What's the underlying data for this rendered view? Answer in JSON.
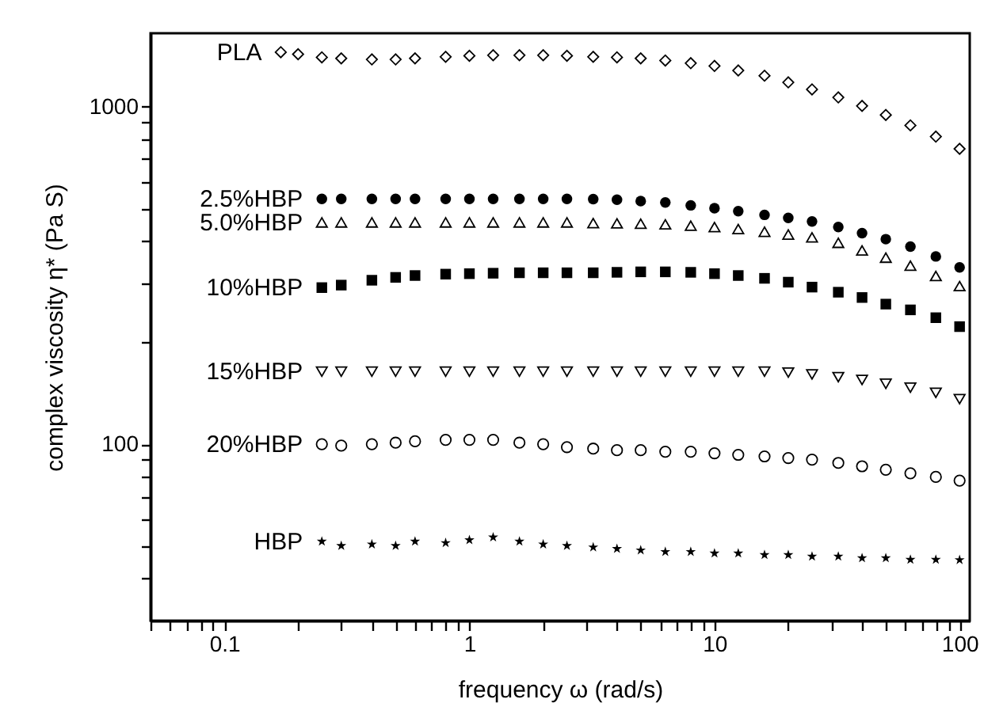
{
  "chart_data": {
    "type": "scatter",
    "xlabel": "frequency ω (rad/s)",
    "ylabel": "complex viscosity η* (Pa S)",
    "xlim": [
      0.05,
      110
    ],
    "ylim": [
      30,
      1650
    ],
    "log": "xy",
    "grid": false,
    "legend": false,
    "xticks": [
      {
        "value": 0.05,
        "label": null
      },
      {
        "value": 0.06,
        "label": null
      },
      {
        "value": 0.07,
        "label": null
      },
      {
        "value": 0.08,
        "label": null
      },
      {
        "value": 0.09,
        "label": null
      },
      0.1,
      {
        "value": 0.2,
        "label": null
      },
      {
        "value": 0.3,
        "label": null
      },
      {
        "value": 0.4,
        "label": null
      },
      {
        "value": 0.5,
        "label": null
      },
      {
        "value": 0.6,
        "label": null
      },
      {
        "value": 0.7,
        "label": null
      },
      {
        "value": 0.8,
        "label": null
      },
      {
        "value": 0.9,
        "label": null
      },
      1,
      {
        "value": 2,
        "label": null
      },
      {
        "value": 3,
        "label": null
      },
      {
        "value": 4,
        "label": null
      },
      {
        "value": 5,
        "label": null
      },
      {
        "value": 6,
        "label": null
      },
      {
        "value": 7,
        "label": null
      },
      {
        "value": 8,
        "label": null
      },
      {
        "value": 9,
        "label": null
      },
      10,
      {
        "value": 20,
        "label": null
      },
      {
        "value": 30,
        "label": null
      },
      {
        "value": 40,
        "label": null
      },
      {
        "value": 50,
        "label": null
      },
      {
        "value": 60,
        "label": null
      },
      {
        "value": 70,
        "label": null
      },
      {
        "value": 80,
        "label": null
      },
      {
        "value": 90,
        "label": null
      },
      100
    ],
    "yticks": [
      {
        "value": 40,
        "label": null
      },
      {
        "value": 50,
        "label": null
      },
      {
        "value": 60,
        "label": null
      },
      {
        "value": 70,
        "label": null
      },
      {
        "value": 80,
        "label": null
      },
      {
        "value": 90,
        "label": null
      },
      100,
      {
        "value": 200,
        "label": null
      },
      {
        "value": 300,
        "label": null
      },
      {
        "value": 400,
        "label": null
      },
      {
        "value": 500,
        "label": null
      },
      {
        "value": 600,
        "label": null
      },
      {
        "value": 700,
        "label": null
      },
      {
        "value": 800,
        "label": null
      },
      {
        "value": 900,
        "label": null
      },
      1000
    ],
    "x": [
      0.25,
      0.3,
      0.4,
      0.5,
      0.6,
      0.8,
      1,
      1.25,
      1.6,
      2,
      2.5,
      3.2,
      4,
      5,
      6.3,
      8,
      10,
      12.5,
      16,
      20,
      25,
      32,
      40,
      50,
      63,
      80,
      100
    ],
    "series": [
      {
        "name": "PLA",
        "color": "#000000",
        "marker": "diamond",
        "x": [
          0.17,
          0.2,
          0.25,
          0.3,
          0.4,
          0.5,
          0.6,
          0.8,
          1,
          1.25,
          1.6,
          2,
          2.5,
          3.2,
          4,
          5,
          6.3,
          8,
          10,
          12.5,
          16,
          20,
          25,
          32,
          40,
          50,
          63,
          80,
          100
        ],
        "values": [
          1450,
          1430,
          1400,
          1390,
          1380,
          1380,
          1390,
          1405,
          1415,
          1420,
          1420,
          1420,
          1415,
          1405,
          1400,
          1390,
          1370,
          1345,
          1320,
          1280,
          1235,
          1180,
          1125,
          1065,
          1005,
          945,
          880,
          815,
          750
        ]
      },
      {
        "name": "2.5%HBP",
        "color": "#000000",
        "marker": "circle-filled",
        "values": [
          533,
          533,
          533,
          533,
          533,
          533,
          533,
          533,
          533,
          533,
          533,
          532,
          530,
          525,
          520,
          510,
          500,
          490,
          478,
          468,
          457,
          440,
          422,
          405,
          385,
          360,
          334
        ]
      },
      {
        "name": "5.0%HBP",
        "color": "#000000",
        "marker": "triangle",
        "values": [
          454,
          454,
          454,
          454,
          454,
          454,
          454,
          454,
          454,
          454,
          454,
          452,
          451,
          450,
          448,
          444,
          440,
          434,
          426,
          418,
          410,
          395,
          375,
          357,
          338,
          315,
          294
        ]
      },
      {
        "name": "10%HBP",
        "color": "#000000",
        "marker": "square-filled",
        "values": [
          291,
          296,
          306,
          312,
          316,
          319,
          320,
          321,
          322,
          322,
          322,
          322,
          323,
          324,
          324,
          323,
          320,
          316,
          310,
          302,
          292,
          282,
          272,
          260,
          250,
          237,
          223
        ]
      },
      {
        "name": "15%HBP",
        "color": "#000000",
        "marker": "triangle-down",
        "values": [
          164,
          164,
          164,
          164,
          164,
          164,
          164,
          164,
          164,
          164,
          164,
          164,
          164,
          164,
          164,
          164,
          164,
          164,
          164,
          163,
          161,
          158,
          155,
          151,
          147,
          142,
          136
        ]
      },
      {
        "name": "20%HBP",
        "color": "#000000",
        "marker": "circle",
        "values": [
          100,
          99,
          100,
          101,
          102,
          103,
          103,
          103,
          101,
          100,
          98,
          97,
          96,
          96,
          95,
          95,
          94,
          93,
          92,
          91,
          90,
          88,
          86,
          84,
          82,
          80,
          78
        ]
      },
      {
        "name": "HBP",
        "color": "#000000",
        "marker": "star-filled",
        "values": [
          51.5,
          50,
          50.5,
          50,
          51.5,
          51,
          52,
          53,
          51.5,
          50.5,
          50,
          49.5,
          49,
          48.5,
          48,
          48,
          47.5,
          47.5,
          47,
          47,
          46.5,
          46.5,
          46,
          46,
          45.5,
          45.5,
          45.4
        ]
      }
    ]
  }
}
